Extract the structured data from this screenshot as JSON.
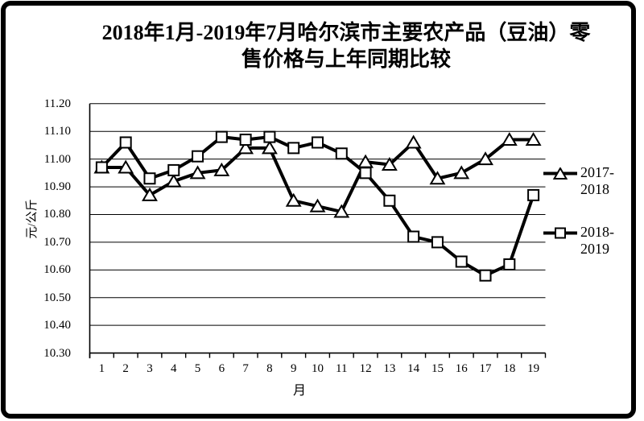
{
  "title": {
    "line1": "2018年1月-2019年7月哈尔滨市主要农产品（豆油）零",
    "line2": "售价格与上年同期比较"
  },
  "colors": {
    "line": "#000000",
    "marker_fill": "#ffffff",
    "text": "#000000",
    "background": "#ffffff"
  },
  "chart_data": {
    "type": "line",
    "x": [
      1,
      2,
      3,
      4,
      5,
      6,
      7,
      8,
      9,
      10,
      11,
      12,
      13,
      14,
      15,
      16,
      17,
      18,
      19
    ],
    "xlabel": "月",
    "ylabel": "元/公斤",
    "ylim": [
      10.3,
      11.2
    ],
    "ytick_step": 0.1,
    "ytick_labels": [
      "10.30",
      "10.40",
      "10.50",
      "10.60",
      "10.70",
      "10.80",
      "10.90",
      "11.00",
      "11.10",
      "11.20"
    ],
    "grid": true,
    "legend_position": "right",
    "series": [
      {
        "name": "2017-2018",
        "marker": "triangle",
        "values": [
          10.97,
          10.97,
          10.87,
          10.92,
          10.95,
          10.96,
          11.04,
          11.04,
          10.85,
          10.83,
          10.81,
          10.99,
          10.98,
          11.06,
          10.93,
          10.95,
          11.0,
          11.07,
          11.07
        ]
      },
      {
        "name": "2018-2019",
        "marker": "square",
        "values": [
          10.97,
          11.06,
          10.93,
          10.96,
          11.01,
          11.08,
          11.07,
          11.08,
          11.04,
          11.06,
          11.02,
          10.95,
          10.85,
          10.72,
          10.7,
          10.63,
          10.58,
          10.62,
          10.87
        ]
      }
    ]
  }
}
